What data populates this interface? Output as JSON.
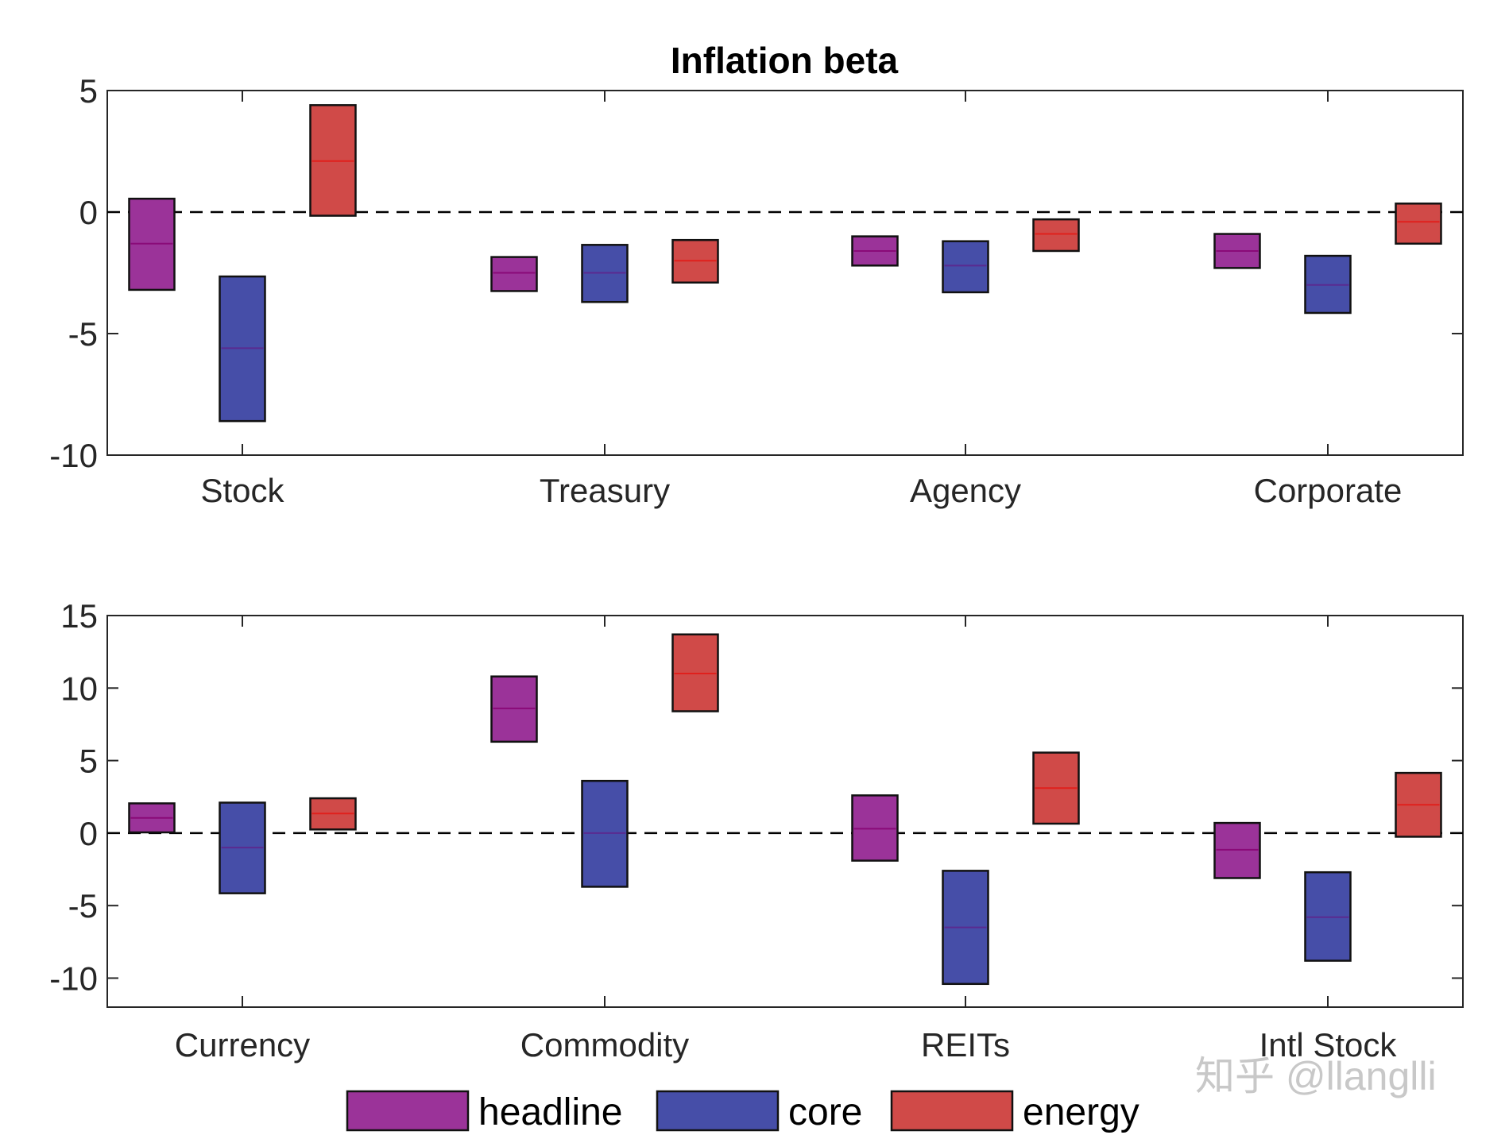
{
  "chart_data": {
    "title": "Inflation beta",
    "type": "floating-bar",
    "series_names": [
      "headline",
      "core",
      "energy"
    ],
    "colors": {
      "headline": "#9b3399",
      "core": "#464ea8",
      "energy": "#d04a48"
    },
    "median_colors": {
      "headline": "#8a0a78",
      "core": "#5a2a90",
      "energy": "#e0201c"
    },
    "legend": {
      "placement": "bottom",
      "entries": [
        "headline",
        "core",
        "energy"
      ]
    },
    "panels": [
      {
        "ylim": [
          -10,
          5
        ],
        "yticks": [
          "-10",
          "-5",
          "0",
          "5"
        ],
        "ytick_values": [
          -10,
          -5,
          0,
          5
        ],
        "zero_line": "dashed",
        "categories": [
          "Stock",
          "Treasury",
          "Agency",
          "Corporate"
        ],
        "series": [
          {
            "name": "headline",
            "low": [
              -3.2,
              -3.25,
              -2.2,
              -2.3
            ],
            "mid": [
              -1.3,
              -2.5,
              -1.6,
              -1.6
            ],
            "high": [
              0.55,
              -1.85,
              -1.0,
              -0.9
            ]
          },
          {
            "name": "core",
            "low": [
              -8.6,
              -3.7,
              -3.3,
              -4.15
            ],
            "mid": [
              -5.6,
              -2.5,
              -2.2,
              -3.0
            ],
            "high": [
              -2.65,
              -1.35,
              -1.2,
              -1.8
            ]
          },
          {
            "name": "energy",
            "low": [
              -0.15,
              -2.9,
              -1.6,
              -1.3
            ],
            "mid": [
              2.1,
              -2.0,
              -0.9,
              -0.4
            ],
            "high": [
              4.4,
              -1.15,
              -0.3,
              0.35
            ]
          }
        ]
      },
      {
        "ylim": [
          -12,
          15
        ],
        "yticks": [
          "-10",
          "-5",
          "0",
          "5",
          "10",
          "15"
        ],
        "ytick_values": [
          -10,
          -5,
          0,
          5,
          10,
          15
        ],
        "zero_line": "dashed",
        "categories": [
          "Currency",
          "Commodity",
          "REITs",
          "Intl Stock"
        ],
        "series": [
          {
            "name": "headline",
            "low": [
              0.05,
              6.3,
              -1.9,
              -3.1
            ],
            "mid": [
              1.05,
              8.6,
              0.3,
              -1.15
            ],
            "high": [
              2.05,
              10.8,
              2.6,
              0.7
            ]
          },
          {
            "name": "core",
            "low": [
              -4.15,
              -3.7,
              -10.4,
              -8.8
            ],
            "mid": [
              -1.0,
              0.0,
              -6.5,
              -5.8
            ],
            "high": [
              2.1,
              3.6,
              -2.6,
              -2.7
            ]
          },
          {
            "name": "energy",
            "low": [
              0.25,
              8.4,
              0.65,
              -0.25
            ],
            "mid": [
              1.35,
              11.0,
              3.1,
              1.95
            ],
            "high": [
              2.4,
              13.7,
              5.55,
              4.15
            ]
          }
        ]
      }
    ]
  },
  "watermark": "知乎 @llanglli"
}
